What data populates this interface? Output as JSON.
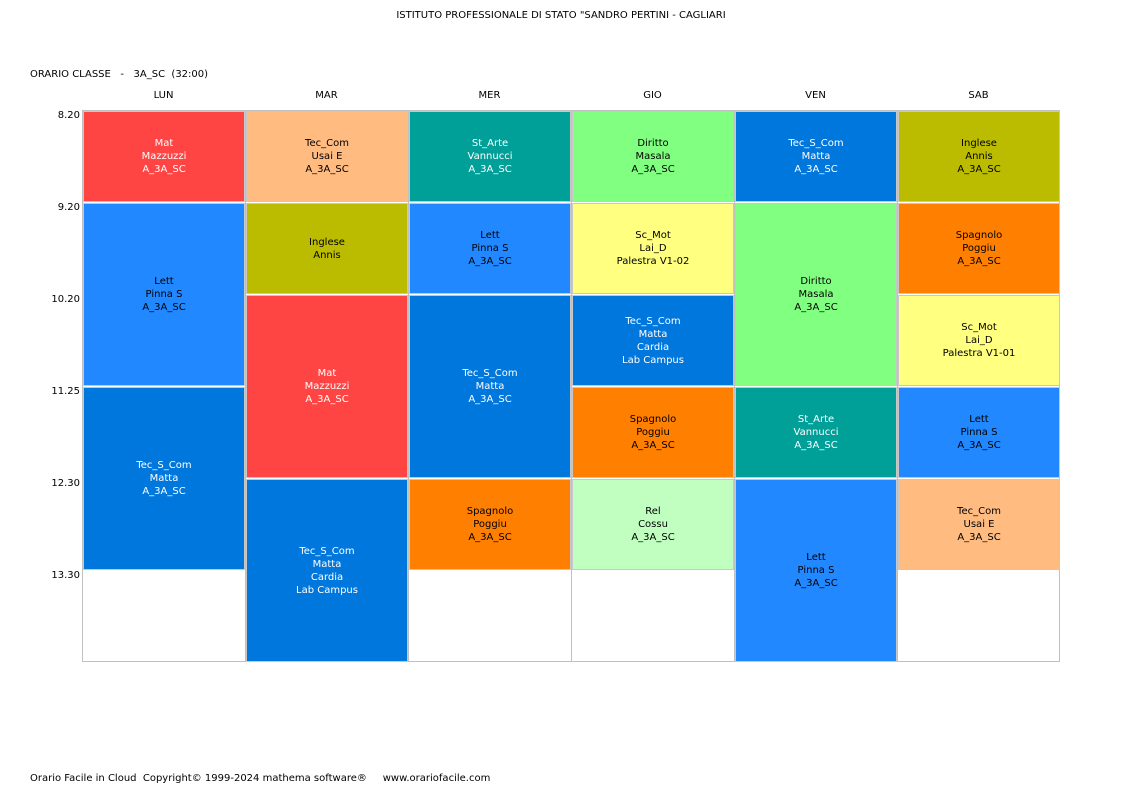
{
  "header": {
    "title": "ISTITUTO PROFESSIONALE DI STATO \"SANDRO PERTINI - CAGLIARI",
    "class_label": "ORARIO CLASSE   -   3A_SC  (32:00)"
  },
  "days": [
    "LUN",
    "MAR",
    "MER",
    "GIO",
    "VEN",
    "SAB"
  ],
  "times": [
    "8.20",
    "9.20",
    "10.20",
    "11.25",
    "12.30",
    "13.30"
  ],
  "lessons": [
    {
      "day": 0,
      "start": 0,
      "span": 1,
      "color": "#ff4444",
      "text_color": "#ffffff",
      "lines": [
        "Mat",
        "Mazzuzzi",
        "A_3A_SC"
      ]
    },
    {
      "day": 0,
      "start": 1,
      "span": 2,
      "color": "#2288ff",
      "text_color": "#000000",
      "lines": [
        "Lett",
        "Pinna S",
        "A_3A_SC"
      ]
    },
    {
      "day": 0,
      "start": 3,
      "span": 2,
      "color": "#0077dd",
      "text_color": "#ffffff",
      "lines": [
        "Tec_S_Com",
        "Matta",
        "A_3A_SC"
      ]
    },
    {
      "day": 1,
      "start": 0,
      "span": 1,
      "color": "#ffbb80",
      "text_color": "#000000",
      "lines": [
        "Tec_Com",
        "Usai E",
        "A_3A_SC"
      ]
    },
    {
      "day": 1,
      "start": 1,
      "span": 1,
      "color": "#bbbb00",
      "text_color": "#000000",
      "lines": [
        "Inglese",
        "Annis"
      ]
    },
    {
      "day": 1,
      "start": 2,
      "span": 2,
      "color": "#ff4444",
      "text_color": "#ffffff",
      "lines": [
        "Mat",
        "Mazzuzzi",
        "A_3A_SC"
      ]
    },
    {
      "day": 1,
      "start": 4,
      "span": 2,
      "color": "#0077dd",
      "text_color": "#ffffff",
      "lines": [
        "Tec_S_Com",
        "Matta",
        "Cardia",
        "Lab Campus"
      ]
    },
    {
      "day": 2,
      "start": 0,
      "span": 1,
      "color": "#00a099",
      "text_color": "#ffffff",
      "lines": [
        "St_Arte",
        "Vannucci",
        "A_3A_SC"
      ]
    },
    {
      "day": 2,
      "start": 1,
      "span": 1,
      "color": "#2288ff",
      "text_color": "#000000",
      "lines": [
        "Lett",
        "Pinna S",
        "A_3A_SC"
      ]
    },
    {
      "day": 2,
      "start": 2,
      "span": 2,
      "color": "#0077dd",
      "text_color": "#ffffff",
      "lines": [
        "Tec_S_Com",
        "Matta",
        "A_3A_SC"
      ]
    },
    {
      "day": 2,
      "start": 4,
      "span": 1,
      "color": "#ff8000",
      "text_color": "#000000",
      "lines": [
        "Spagnolo",
        "Poggiu",
        "A_3A_SC"
      ]
    },
    {
      "day": 3,
      "start": 0,
      "span": 1,
      "color": "#80ff80",
      "text_color": "#000000",
      "lines": [
        "Diritto",
        "Masala",
        "A_3A_SC"
      ]
    },
    {
      "day": 3,
      "start": 1,
      "span": 1,
      "color": "#ffff80",
      "text_color": "#000000",
      "lines": [
        "Sc_Mot",
        "Lai_D",
        "Palestra V1-02"
      ]
    },
    {
      "day": 3,
      "start": 2,
      "span": 1,
      "color": "#0077dd",
      "text_color": "#ffffff",
      "lines": [
        "Tec_S_Com",
        "Matta",
        "Cardia",
        "Lab Campus"
      ]
    },
    {
      "day": 3,
      "start": 3,
      "span": 1,
      "color": "#ff8000",
      "text_color": "#000000",
      "lines": [
        "Spagnolo",
        "Poggiu",
        "A_3A_SC"
      ]
    },
    {
      "day": 3,
      "start": 4,
      "span": 1,
      "color": "#c0ffc0",
      "text_color": "#000000",
      "lines": [
        "Rel",
        "Cossu",
        "A_3A_SC"
      ]
    },
    {
      "day": 4,
      "start": 0,
      "span": 1,
      "color": "#0077dd",
      "text_color": "#ffffff",
      "lines": [
        "Tec_S_Com",
        "Matta",
        "A_3A_SC"
      ]
    },
    {
      "day": 4,
      "start": 1,
      "span": 2,
      "color": "#80ff80",
      "text_color": "#000000",
      "lines": [
        "Diritto",
        "Masala",
        "A_3A_SC"
      ]
    },
    {
      "day": 4,
      "start": 3,
      "span": 1,
      "color": "#00a099",
      "text_color": "#ffffff",
      "lines": [
        "St_Arte",
        "Vannucci",
        "A_3A_SC"
      ]
    },
    {
      "day": 4,
      "start": 4,
      "span": 2,
      "color": "#2288ff",
      "text_color": "#000000",
      "lines": [
        "Lett",
        "Pinna S",
        "A_3A_SC"
      ]
    },
    {
      "day": 5,
      "start": 0,
      "span": 1,
      "color": "#bbbb00",
      "text_color": "#000000",
      "lines": [
        "Inglese",
        "Annis",
        "A_3A_SC"
      ]
    },
    {
      "day": 5,
      "start": 1,
      "span": 1,
      "color": "#ff8000",
      "text_color": "#000000",
      "lines": [
        "Spagnolo",
        "Poggiu",
        "A_3A_SC"
      ]
    },
    {
      "day": 5,
      "start": 2,
      "span": 1,
      "color": "#ffff80",
      "text_color": "#000000",
      "lines": [
        "Sc_Mot",
        "Lai_D",
        "Palestra V1-01"
      ]
    },
    {
      "day": 5,
      "start": 3,
      "span": 1,
      "color": "#2288ff",
      "text_color": "#000000",
      "lines": [
        "Lett",
        "Pinna S",
        "A_3A_SC"
      ]
    },
    {
      "day": 5,
      "start": 4,
      "span": 1,
      "color": "#ffbb80",
      "text_color": "#000000",
      "lines": [
        "Tec_Com",
        "Usai E",
        "A_3A_SC"
      ]
    }
  ],
  "footer": {
    "text": "Orario Facile in Cloud  Copyright© 1999-2024 mathema software®     www.orariofacile.com"
  }
}
